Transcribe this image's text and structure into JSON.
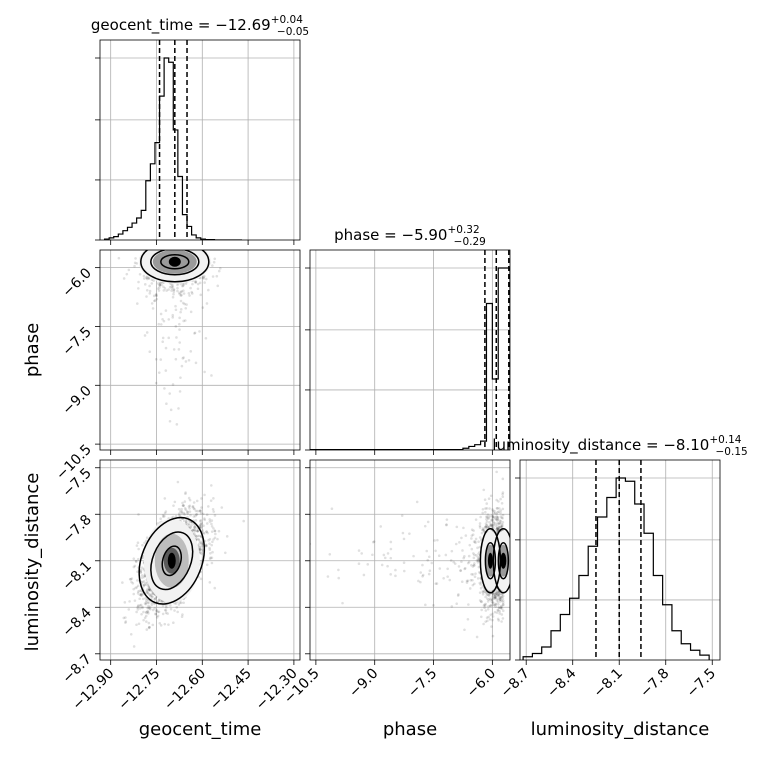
{
  "chart_data": {
    "type": "corner",
    "parameters": [
      "geocent_time",
      "phase",
      "luminosity_distance"
    ],
    "axes": {
      "geocent_time": {
        "range": [
          -12.935,
          -12.28
        ],
        "ticks": [
          -12.9,
          -12.75,
          -12.6,
          -12.45,
          -12.3
        ],
        "tick_labels": [
          "−12.90",
          "−12.75",
          "−12.60",
          "−12.45",
          "−12.30"
        ]
      },
      "phase": {
        "range": [
          -10.65,
          -5.55
        ],
        "ticks": [
          -10.5,
          -9.0,
          -7.5,
          -6.0
        ],
        "tick_labels": [
          "−10.5",
          "−9.0",
          "−7.5",
          "−6.0"
        ]
      },
      "luminosity_distance": {
        "range": [
          -8.74,
          -7.45
        ],
        "ticks": [
          -8.7,
          -8.4,
          -8.1,
          -7.8,
          -7.5
        ],
        "tick_labels": [
          "−8.7",
          "−8.4",
          "−8.1",
          "−7.8",
          "−7.5"
        ]
      }
    },
    "titles": [
      {
        "parameter": "geocent_time",
        "prefix": "geocent_time = −12.69",
        "plus": "+0.04",
        "minus": "−0.05"
      },
      {
        "parameter": "phase",
        "prefix": "phase = −5.90",
        "plus": "+0.32",
        "minus": "−0.29"
      },
      {
        "parameter": "luminosity_distance",
        "prefix": "luminosity_distance = −8.10",
        "plus": "+0.14",
        "minus": "−0.15"
      }
    ],
    "quantiles": {
      "geocent_time": [
        -12.74,
        -12.69,
        -12.65
      ],
      "phase": [
        -6.19,
        -5.9,
        -5.58
      ],
      "luminosity_distance": [
        -8.25,
        -8.1,
        -7.96
      ]
    },
    "histograms": {
      "geocent_time": {
        "edges": [
          -12.92,
          -12.905,
          -12.89,
          -12.875,
          -12.86,
          -12.845,
          -12.83,
          -12.815,
          -12.8,
          -12.785,
          -12.77,
          -12.755,
          -12.74,
          -12.725,
          -12.71,
          -12.695,
          -12.68,
          -12.665,
          -12.65,
          -12.635,
          -12.62,
          -12.605,
          -12.59,
          -12.575,
          -12.56,
          -12.545,
          -12.53,
          -12.515,
          -12.5,
          -12.485,
          -12.47
        ],
        "counts": [
          2,
          5,
          8,
          14,
          22,
          30,
          40,
          52,
          70,
          140,
          180,
          230,
          340,
          430,
          420,
          260,
          150,
          60,
          32,
          12,
          5,
          2,
          1,
          1,
          0,
          0,
          0,
          0,
          0,
          0
        ]
      },
      "phase": {
        "edges": [
          -6.75,
          -6.6,
          -6.45,
          -6.3,
          -6.15,
          -6.0,
          -5.85,
          -5.7,
          -5.55
        ],
        "counts": [
          2,
          4,
          6,
          10,
          165,
          80,
          205,
          205
        ],
        "tail": {
          "start": -10.65,
          "end": -6.75,
          "level": 0.5
        }
      },
      "luminosity_distance": {
        "edges": [
          -8.72,
          -8.66,
          -8.6,
          -8.54,
          -8.48,
          -8.42,
          -8.36,
          -8.3,
          -8.24,
          -8.18,
          -8.12,
          -8.06,
          -8.0,
          -7.94,
          -7.88,
          -7.82,
          -7.76,
          -7.7,
          -7.64,
          -7.58,
          -7.52
        ],
        "counts": [
          2,
          4,
          8,
          18,
          28,
          38,
          52,
          70,
          88,
          100,
          112,
          110,
          96,
          78,
          52,
          34,
          18,
          10,
          6,
          3
        ]
      }
    },
    "ylabels": [
      "phase",
      "luminosity_distance"
    ],
    "xlabels": [
      "geocent_time",
      "phase",
      "luminosity_distance"
    ]
  }
}
